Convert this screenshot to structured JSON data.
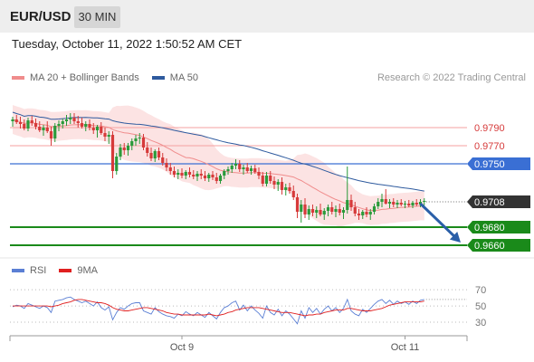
{
  "header": {
    "symbol": "EUR/USD",
    "timeframe": "30 MIN"
  },
  "datetime": "Tuesday, October 11, 2022 1:50:52 AM CET",
  "legend": [
    {
      "label": "MA 20 + Bollinger Bands",
      "color": "#f08c8c"
    },
    {
      "label": "MA 50",
      "color": "#2e5a9e"
    }
  ],
  "credit": "Research © 2022 Trading Central",
  "rsi_legend": [
    {
      "label": "RSI",
      "color": "#5b7fd4"
    },
    {
      "label": "9MA",
      "color": "#e02020"
    }
  ],
  "colors": {
    "up": "#2a9a3a",
    "down": "#d63a3a",
    "resistance": "#d63a3a",
    "pivot": "#3a6fd4",
    "support": "#1a8a1a",
    "last": "#333333",
    "arrow": "#2a5fa8"
  },
  "chart_data": {
    "type": "candlestick",
    "price_range": [
      0.9648,
      0.9826
    ],
    "levels": [
      {
        "value": "0.9790",
        "price": 0.979,
        "role": "resistance"
      },
      {
        "value": "0.9770",
        "price": 0.977,
        "role": "resistance"
      },
      {
        "value": "0.9750",
        "price": 0.975,
        "role": "pivot"
      },
      {
        "value": "0.9708",
        "price": 0.9708,
        "role": "last"
      },
      {
        "value": "0.9680",
        "price": 0.968,
        "role": "support"
      },
      {
        "value": "0.9660",
        "price": 0.966,
        "role": "support"
      }
    ],
    "x_labels": [
      {
        "label": "Oct 9",
        "bar": 44
      },
      {
        "label": "Oct 11",
        "bar": 102
      }
    ],
    "arrow": {
      "from_bar": 106,
      "from_price": 0.9706,
      "to_price": 0.9663
    },
    "candles": [
      [
        0.9797,
        0.9802,
        0.9791,
        0.9799
      ],
      [
        0.9799,
        0.9804,
        0.9794,
        0.9796
      ],
      [
        0.9796,
        0.9802,
        0.9789,
        0.9794
      ],
      [
        0.9794,
        0.9799,
        0.9787,
        0.9789
      ],
      [
        0.9789,
        0.9801,
        0.9786,
        0.9798
      ],
      [
        0.9798,
        0.9803,
        0.9792,
        0.9795
      ],
      [
        0.9795,
        0.98,
        0.9788,
        0.9791
      ],
      [
        0.9791,
        0.9797,
        0.9785,
        0.9787
      ],
      [
        0.9787,
        0.9793,
        0.9781,
        0.979
      ],
      [
        0.979,
        0.9797,
        0.9784,
        0.9786
      ],
      [
        0.9786,
        0.9791,
        0.977,
        0.9778
      ],
      [
        0.9778,
        0.9795,
        0.9774,
        0.9792
      ],
      [
        0.9792,
        0.9798,
        0.9786,
        0.9794
      ],
      [
        0.9794,
        0.98,
        0.9789,
        0.9797
      ],
      [
        0.9797,
        0.9804,
        0.9792,
        0.9799
      ],
      [
        0.9799,
        0.9806,
        0.9794,
        0.9801
      ],
      [
        0.9801,
        0.9806,
        0.9794,
        0.9797
      ],
      [
        0.9797,
        0.9803,
        0.979,
        0.9795
      ],
      [
        0.9795,
        0.9801,
        0.9789,
        0.9791
      ],
      [
        0.9791,
        0.9797,
        0.9786,
        0.9794
      ],
      [
        0.9794,
        0.9799,
        0.9787,
        0.979
      ],
      [
        0.979,
        0.9795,
        0.9783,
        0.9787
      ],
      [
        0.9787,
        0.9793,
        0.9779,
        0.9791
      ],
      [
        0.9791,
        0.9796,
        0.9782,
        0.9784
      ],
      [
        0.9784,
        0.979,
        0.9775,
        0.978
      ],
      [
        0.978,
        0.9786,
        0.9772,
        0.9782
      ],
      [
        0.9782,
        0.9786,
        0.9734,
        0.9742
      ],
      [
        0.9742,
        0.9762,
        0.9738,
        0.9758
      ],
      [
        0.9758,
        0.9772,
        0.9754,
        0.9768
      ],
      [
        0.9768,
        0.9773,
        0.976,
        0.9765
      ],
      [
        0.9765,
        0.9773,
        0.9759,
        0.977
      ],
      [
        0.977,
        0.9778,
        0.9765,
        0.9775
      ],
      [
        0.9775,
        0.9782,
        0.977,
        0.9778
      ],
      [
        0.9778,
        0.9784,
        0.9772,
        0.9779
      ],
      [
        0.9779,
        0.9783,
        0.9765,
        0.9768
      ],
      [
        0.9768,
        0.9774,
        0.9758,
        0.9762
      ],
      [
        0.9762,
        0.9768,
        0.9753,
        0.9756
      ],
      [
        0.9756,
        0.9766,
        0.9752,
        0.9764
      ],
      [
        0.9764,
        0.9768,
        0.9754,
        0.9757
      ],
      [
        0.9757,
        0.9762,
        0.9748,
        0.9751
      ],
      [
        0.9751,
        0.9756,
        0.9742,
        0.9746
      ],
      [
        0.9746,
        0.9751,
        0.9738,
        0.9742
      ],
      [
        0.9742,
        0.9747,
        0.9735,
        0.9738
      ],
      [
        0.9738,
        0.9744,
        0.9733,
        0.974
      ],
      [
        0.974,
        0.9745,
        0.9734,
        0.9737
      ],
      [
        0.9737,
        0.9743,
        0.9733,
        0.9741
      ],
      [
        0.9741,
        0.9746,
        0.9735,
        0.9738
      ],
      [
        0.9738,
        0.9743,
        0.9733,
        0.9736
      ],
      [
        0.9736,
        0.9742,
        0.9731,
        0.9739
      ],
      [
        0.9739,
        0.9744,
        0.9733,
        0.9737
      ],
      [
        0.9737,
        0.9742,
        0.9731,
        0.9734
      ],
      [
        0.9734,
        0.974,
        0.973,
        0.9738
      ],
      [
        0.9738,
        0.9742,
        0.9732,
        0.9735
      ],
      [
        0.9735,
        0.974,
        0.9728,
        0.9731
      ],
      [
        0.9731,
        0.9739,
        0.9728,
        0.9737
      ],
      [
        0.9737,
        0.9744,
        0.9733,
        0.9742
      ],
      [
        0.9742,
        0.9747,
        0.9738,
        0.9744
      ],
      [
        0.9744,
        0.9751,
        0.974,
        0.9748
      ],
      [
        0.9748,
        0.9755,
        0.9744,
        0.975
      ],
      [
        0.975,
        0.9754,
        0.9741,
        0.9744
      ],
      [
        0.9744,
        0.9749,
        0.9738,
        0.9746
      ],
      [
        0.9746,
        0.9751,
        0.974,
        0.9742
      ],
      [
        0.9742,
        0.9748,
        0.9738,
        0.9745
      ],
      [
        0.9745,
        0.9749,
        0.9739,
        0.9741
      ],
      [
        0.9741,
        0.9746,
        0.9733,
        0.9737
      ],
      [
        0.9737,
        0.9741,
        0.9725,
        0.9728
      ],
      [
        0.9728,
        0.9741,
        0.9725,
        0.9737
      ],
      [
        0.9737,
        0.9742,
        0.9728,
        0.9731
      ],
      [
        0.9731,
        0.9736,
        0.9722,
        0.9727
      ],
      [
        0.9727,
        0.9733,
        0.972,
        0.973
      ],
      [
        0.973,
        0.9735,
        0.9716,
        0.9721
      ],
      [
        0.9721,
        0.9728,
        0.9715,
        0.9724
      ],
      [
        0.9724,
        0.9729,
        0.9717,
        0.972
      ],
      [
        0.972,
        0.9726,
        0.971,
        0.9713
      ],
      [
        0.9713,
        0.9717,
        0.969,
        0.9697
      ],
      [
        0.9697,
        0.971,
        0.9685,
        0.9705
      ],
      [
        0.9705,
        0.9712,
        0.969,
        0.9694
      ],
      [
        0.9694,
        0.9704,
        0.9688,
        0.97
      ],
      [
        0.97,
        0.9705,
        0.9692,
        0.9696
      ],
      [
        0.9696,
        0.9703,
        0.969,
        0.9699
      ],
      [
        0.9699,
        0.9706,
        0.9692,
        0.9694
      ],
      [
        0.9694,
        0.9701,
        0.9688,
        0.9698
      ],
      [
        0.9698,
        0.9705,
        0.9692,
        0.9702
      ],
      [
        0.9702,
        0.9708,
        0.9694,
        0.9697
      ],
      [
        0.9697,
        0.9704,
        0.9691,
        0.97
      ],
      [
        0.97,
        0.9706,
        0.9693,
        0.9696
      ],
      [
        0.9696,
        0.9702,
        0.9689,
        0.9699
      ],
      [
        0.9699,
        0.9747,
        0.9695,
        0.971
      ],
      [
        0.971,
        0.9716,
        0.9698,
        0.9702
      ],
      [
        0.9702,
        0.9708,
        0.9692,
        0.9695
      ],
      [
        0.9695,
        0.97,
        0.9688,
        0.9693
      ],
      [
        0.9693,
        0.9699,
        0.9689,
        0.9697
      ],
      [
        0.9697,
        0.9702,
        0.9691,
        0.9694
      ],
      [
        0.9694,
        0.97,
        0.9688,
        0.9697
      ],
      [
        0.9697,
        0.9706,
        0.9694,
        0.9703
      ],
      [
        0.9703,
        0.9712,
        0.97,
        0.9708
      ],
      [
        0.9708,
        0.9717,
        0.9702,
        0.9711
      ],
      [
        0.9711,
        0.9722,
        0.9705,
        0.9706
      ],
      [
        0.9706,
        0.9711,
        0.9701,
        0.9708
      ],
      [
        0.9708,
        0.9712,
        0.9702,
        0.9705
      ],
      [
        0.9705,
        0.971,
        0.9701,
        0.9707
      ],
      [
        0.9707,
        0.9711,
        0.9703,
        0.9705
      ],
      [
        0.9705,
        0.9709,
        0.9701,
        0.9706
      ],
      [
        0.9706,
        0.971,
        0.9702,
        0.9704
      ],
      [
        0.9704,
        0.9709,
        0.9701,
        0.9707
      ],
      [
        0.9707,
        0.9711,
        0.9703,
        0.9705
      ],
      [
        0.9705,
        0.9711,
        0.9702,
        0.9708
      ],
      [
        0.9708,
        0.9712,
        0.9704,
        0.9709
      ]
    ],
    "rsi_axis": {
      "ticks": [
        "70",
        "50",
        "30"
      ],
      "values": [
        70,
        50,
        30
      ],
      "range": [
        20,
        78
      ]
    },
    "rsi": [
      49,
      51,
      50,
      47,
      53,
      51,
      49,
      47,
      50,
      48,
      42,
      56,
      57,
      58,
      60,
      61,
      58,
      56,
      54,
      56,
      53,
      50,
      55,
      48,
      45,
      49,
      33,
      42,
      48,
      46,
      50,
      53,
      54,
      54,
      44,
      42,
      40,
      48,
      43,
      40,
      38,
      37,
      35,
      40,
      38,
      43,
      40,
      38,
      42,
      39,
      36,
      42,
      38,
      34,
      42,
      48,
      50,
      54,
      56,
      45,
      51,
      44,
      50,
      45,
      41,
      35,
      50,
      42,
      39,
      46,
      38,
      44,
      40,
      34,
      28,
      44,
      35,
      48,
      42,
      47,
      40,
      46,
      50,
      44,
      48,
      42,
      47,
      58,
      44,
      40,
      38,
      46,
      42,
      47,
      52,
      56,
      58,
      53,
      57,
      52,
      56,
      53,
      55,
      52,
      56,
      53,
      57,
      58
    ],
    "rsi_ma": [
      50,
      50,
      50,
      50,
      50,
      50,
      50,
      50,
      50,
      50,
      49,
      50,
      51,
      53,
      54,
      55,
      57,
      58,
      58,
      57,
      56,
      55,
      54,
      54,
      53,
      51,
      48,
      46,
      45,
      44,
      44,
      45,
      46,
      47,
      48,
      48,
      47,
      46,
      45,
      44,
      42,
      41,
      40,
      40,
      39,
      39,
      39,
      39,
      39,
      39,
      39,
      40,
      39,
      38,
      39,
      40,
      42,
      43,
      45,
      46,
      47,
      48,
      48,
      48,
      48,
      47,
      46,
      45,
      44,
      43,
      42,
      42,
      42,
      41,
      40,
      39,
      38,
      39,
      39,
      40,
      40,
      42,
      43,
      44,
      45,
      45,
      45,
      47,
      47,
      46,
      45,
      44,
      44,
      44,
      45,
      46,
      47,
      49,
      51,
      52,
      53,
      54,
      55,
      55,
      55,
      55,
      55,
      56
    ]
  }
}
